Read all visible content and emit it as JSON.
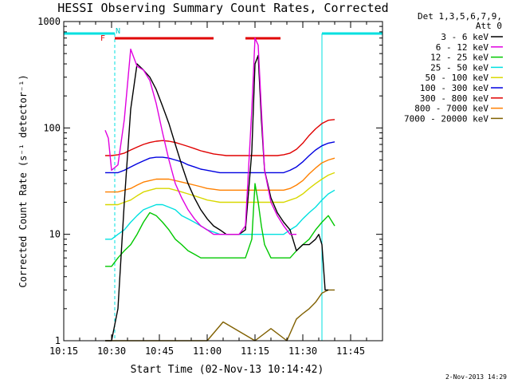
{
  "chart_data": {
    "type": "line",
    "title": "HESSI Observing Summary Count Rates, Corrected",
    "xlabel": "Start Time (02-Nov-13 10:14:42)",
    "ylabel": "Corrected Count Rate (s⁻¹ detector⁻¹)",
    "y_scale": "log",
    "ylim": [
      1,
      1000
    ],
    "xlim": [
      "10:15",
      "11:55"
    ],
    "x_ticks": [
      "10:15",
      "10:30",
      "10:45",
      "11:00",
      "11:15",
      "11:30",
      "11:45"
    ],
    "y_ticks": [
      "1",
      "10",
      "100",
      "1000"
    ],
    "legend_header": [
      "Det 1,3,5,6,7,9,",
      "Att 0"
    ],
    "legend_placement": "right",
    "timestamp": "2-Nov-2013 14:29",
    "flag_labels": {
      "flare": "F",
      "night": "N"
    },
    "flare_intervals": [
      [
        "10:31",
        "11:02"
      ],
      [
        "11:12",
        "11:23"
      ]
    ],
    "night_intervals": [
      [
        "10:15",
        "10:31"
      ],
      [
        "11:36",
        "11:55"
      ]
    ],
    "series": [
      {
        "name": "3 - 6 keV",
        "color": "#000000",
        "x": [
          "10:28",
          "10:30",
          "10:32",
          "10:34",
          "10:36",
          "10:38",
          "10:40",
          "10:42",
          "10:44",
          "10:46",
          "10:48",
          "10:50",
          "10:52",
          "10:54",
          "10:56",
          "10:58",
          "11:00",
          "11:02",
          "11:04",
          "11:06",
          "11:08",
          "11:10",
          "11:12",
          "11:14",
          "11:15",
          "11:16",
          "11:17",
          "11:18",
          "11:20",
          "11:22",
          "11:24",
          "11:26",
          "11:28",
          "11:30",
          "11:32",
          "11:34",
          "11:35",
          "11:36",
          "11:37",
          "11:38"
        ],
        "y": [
          1,
          1,
          2,
          20,
          150,
          400,
          350,
          300,
          230,
          160,
          110,
          70,
          45,
          30,
          22,
          17,
          14,
          12,
          11,
          10,
          10,
          10,
          11,
          60,
          400,
          480,
          120,
          40,
          22,
          16,
          13,
          11,
          7,
          8,
          8,
          9,
          10,
          8,
          3,
          3
        ]
      },
      {
        "name": "6 - 12 keV",
        "color": "#e000e0",
        "x": [
          "10:28",
          "10:29",
          "10:30",
          "10:32",
          "10:34",
          "10:36",
          "10:38",
          "10:40",
          "10:42",
          "10:44",
          "10:46",
          "10:48",
          "10:50",
          "10:52",
          "10:54",
          "10:56",
          "10:58",
          "11:00",
          "11:02",
          "11:04",
          "11:06",
          "11:08",
          "11:10",
          "11:12",
          "11:14",
          "11:15",
          "11:16",
          "11:17",
          "11:18",
          "11:20",
          "11:22",
          "11:24",
          "11:26",
          "11:28"
        ],
        "y": [
          95,
          80,
          40,
          45,
          120,
          550,
          380,
          350,
          280,
          170,
          90,
          50,
          30,
          22,
          17,
          14,
          12,
          11,
          10,
          10,
          10,
          10,
          10,
          12,
          150,
          700,
          600,
          150,
          40,
          20,
          15,
          12,
          10,
          10
        ]
      },
      {
        "name": "12 - 25 keV",
        "color": "#00c800",
        "x": [
          "10:28",
          "10:30",
          "10:32",
          "10:34",
          "10:36",
          "10:38",
          "10:40",
          "10:42",
          "10:44",
          "10:46",
          "10:48",
          "10:50",
          "10:52",
          "10:54",
          "10:56",
          "10:58",
          "11:00",
          "11:02",
          "11:04",
          "11:06",
          "11:08",
          "11:10",
          "11:12",
          "11:14",
          "11:15",
          "11:16",
          "11:17",
          "11:18",
          "11:20",
          "11:22",
          "11:24",
          "11:26",
          "11:28",
          "11:30",
          "11:32",
          "11:34",
          "11:36",
          "11:38",
          "11:40"
        ],
        "y": [
          5,
          5,
          6,
          7,
          8,
          10,
          13,
          16,
          15,
          13,
          11,
          9,
          8,
          7,
          6.5,
          6,
          6,
          6,
          6,
          6,
          6,
          6,
          6,
          9,
          30,
          20,
          12,
          8,
          6,
          6,
          6,
          6,
          7,
          8,
          9,
          11,
          13,
          15,
          12
        ]
      },
      {
        "name": "25 - 50 keV",
        "color": "#00e0e0",
        "x": [
          "10:28",
          "10:30",
          "10:32",
          "10:34",
          "10:36",
          "10:38",
          "10:40",
          "10:42",
          "10:44",
          "10:46",
          "10:48",
          "10:50",
          "10:52",
          "10:54",
          "10:56",
          "10:58",
          "11:00",
          "11:02",
          "11:04",
          "11:06",
          "11:08",
          "11:10",
          "11:12",
          "11:14",
          "11:16",
          "11:18",
          "11:20",
          "11:22",
          "11:24",
          "11:26",
          "11:28",
          "11:30",
          "11:32",
          "11:34",
          "11:36",
          "11:38",
          "11:40"
        ],
        "y": [
          9,
          9,
          10,
          11,
          13,
          15,
          17,
          18,
          19,
          19,
          18,
          17,
          15,
          14,
          13,
          12,
          11,
          10.5,
          10,
          10,
          10,
          10,
          10,
          10,
          10,
          10,
          10,
          10,
          10,
          11,
          12,
          14,
          16,
          18,
          21,
          24,
          26
        ]
      },
      {
        "name": "50 - 100 keV",
        "color": "#d8d800",
        "x": [
          "10:28",
          "10:30",
          "10:32",
          "10:34",
          "10:36",
          "10:38",
          "10:40",
          "10:42",
          "10:44",
          "10:46",
          "10:48",
          "10:50",
          "10:52",
          "10:54",
          "10:56",
          "10:58",
          "11:00",
          "11:02",
          "11:04",
          "11:06",
          "11:08",
          "11:10",
          "11:12",
          "11:14",
          "11:16",
          "11:18",
          "11:20",
          "11:22",
          "11:24",
          "11:26",
          "11:28",
          "11:30",
          "11:32",
          "11:34",
          "11:36",
          "11:38",
          "11:40"
        ],
        "y": [
          19,
          19,
          19,
          20,
          21,
          23,
          25,
          26,
          27,
          27,
          27,
          26,
          25,
          24,
          23,
          22,
          21,
          20.5,
          20,
          20,
          20,
          20,
          20,
          20,
          20,
          20,
          20,
          20,
          20,
          21,
          22,
          24,
          27,
          30,
          33,
          36,
          38
        ]
      },
      {
        "name": "100 - 300 keV",
        "color": "#0000e0",
        "x": [
          "10:28",
          "10:30",
          "10:32",
          "10:34",
          "10:36",
          "10:38",
          "10:40",
          "10:42",
          "10:44",
          "10:46",
          "10:48",
          "10:50",
          "10:52",
          "10:54",
          "10:56",
          "10:58",
          "11:00",
          "11:02",
          "11:04",
          "11:06",
          "11:08",
          "11:10",
          "11:12",
          "11:14",
          "11:16",
          "11:18",
          "11:20",
          "11:22",
          "11:24",
          "11:26",
          "11:28",
          "11:30",
          "11:32",
          "11:34",
          "11:36",
          "11:38",
          "11:40"
        ],
        "y": [
          38,
          38,
          38,
          40,
          43,
          46,
          49,
          52,
          53,
          53,
          52,
          50,
          48,
          45,
          43,
          41,
          40,
          39,
          38,
          38,
          38,
          38,
          38,
          38,
          38,
          38,
          38,
          38,
          38,
          40,
          43,
          48,
          55,
          62,
          68,
          72,
          74
        ]
      },
      {
        "name": "300 - 800 keV",
        "color": "#e00000",
        "x": [
          "10:28",
          "10:30",
          "10:32",
          "10:34",
          "10:36",
          "10:38",
          "10:40",
          "10:42",
          "10:44",
          "10:46",
          "10:48",
          "10:50",
          "10:52",
          "10:54",
          "10:56",
          "10:58",
          "11:00",
          "11:02",
          "11:04",
          "11:06",
          "11:08",
          "11:10",
          "11:12",
          "11:14",
          "11:16",
          "11:18",
          "11:20",
          "11:22",
          "11:24",
          "11:26",
          "11:28",
          "11:30",
          "11:32",
          "11:34",
          "11:36",
          "11:38",
          "11:40"
        ],
        "y": [
          55,
          55,
          56,
          58,
          62,
          66,
          70,
          73,
          75,
          76,
          75,
          73,
          70,
          67,
          64,
          61,
          59,
          57,
          56,
          55,
          55,
          55,
          55,
          55,
          55,
          55,
          55,
          55,
          56,
          58,
          63,
          72,
          85,
          98,
          110,
          118,
          120
        ]
      },
      {
        "name": "800 - 7000 keV",
        "color": "#ff8000",
        "x": [
          "10:28",
          "10:30",
          "10:32",
          "10:34",
          "10:36",
          "10:38",
          "10:40",
          "10:42",
          "10:44",
          "10:46",
          "10:48",
          "10:50",
          "10:52",
          "10:54",
          "10:56",
          "10:58",
          "11:00",
          "11:02",
          "11:04",
          "11:06",
          "11:08",
          "11:10",
          "11:12",
          "11:14",
          "11:16",
          "11:18",
          "11:20",
          "11:22",
          "11:24",
          "11:26",
          "11:28",
          "11:30",
          "11:32",
          "11:34",
          "11:36",
          "11:38",
          "11:40"
        ],
        "y": [
          25,
          25,
          25,
          26,
          27,
          29,
          31,
          32,
          33,
          33,
          33,
          32,
          31,
          30,
          29,
          28,
          27,
          26.5,
          26,
          26,
          26,
          26,
          26,
          26,
          26,
          26,
          26,
          26,
          26,
          27,
          29,
          32,
          37,
          42,
          47,
          50,
          52
        ]
      },
      {
        "name": "7000 - 20000 keV",
        "color": "#806000",
        "x": [
          "10:28",
          "10:30",
          "10:45",
          "11:00",
          "11:05",
          "11:15",
          "11:20",
          "11:25",
          "11:28",
          "11:30",
          "11:32",
          "11:34",
          "11:36",
          "11:38",
          "11:40"
        ],
        "y": [
          1,
          1,
          1,
          1,
          1.5,
          1,
          1.3,
          1,
          1.6,
          1.8,
          2,
          2.3,
          2.8,
          3,
          3
        ]
      }
    ]
  }
}
